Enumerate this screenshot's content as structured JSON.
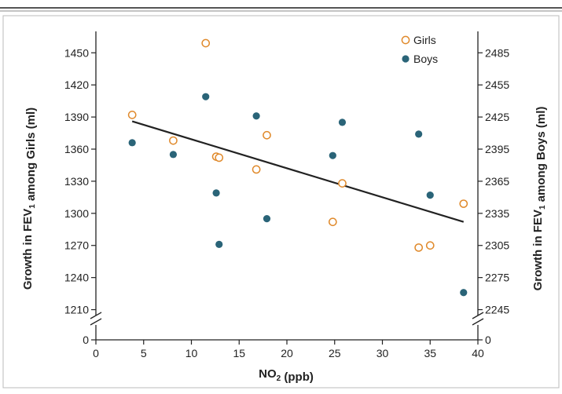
{
  "chart_data": {
    "type": "scatter",
    "xlabel": "NO₂ (ppb)",
    "ylabel_left": "Growth in FEV₁ among Girls (ml)",
    "ylabel_right": "Growth in FEV₁ among Boys (ml)",
    "xlim": [
      0,
      40
    ],
    "ylim_left": [
      1195,
      1470
    ],
    "ylim_right": [
      2230,
      2505
    ],
    "x_ticks": [
      0,
      5,
      10,
      15,
      20,
      25,
      30,
      35,
      40
    ],
    "y_ticks_left": [
      1210,
      1240,
      1270,
      1300,
      1330,
      1360,
      1390,
      1420,
      1450
    ],
    "y_ticks_right": [
      2245,
      2275,
      2305,
      2335,
      2365,
      2395,
      2425,
      2455,
      2485
    ],
    "axis_break_zero_label_left": "0",
    "axis_break_zero_label_right": "0",
    "legend_position": "top-right",
    "series": [
      {
        "name": "Girls",
        "axis": "left",
        "marker": "open-circle",
        "color": "#e08a2c",
        "points": [
          {
            "x": 3.8,
            "y": 1392
          },
          {
            "x": 8.1,
            "y": 1368
          },
          {
            "x": 11.5,
            "y": 1459
          },
          {
            "x": 12.6,
            "y": 1353
          },
          {
            "x": 12.9,
            "y": 1352
          },
          {
            "x": 16.8,
            "y": 1341
          },
          {
            "x": 17.9,
            "y": 1373
          },
          {
            "x": 24.8,
            "y": 1292
          },
          {
            "x": 25.8,
            "y": 1328
          },
          {
            "x": 33.8,
            "y": 1268
          },
          {
            "x": 35.0,
            "y": 1270
          },
          {
            "x": 38.5,
            "y": 1309
          }
        ]
      },
      {
        "name": "Boys",
        "axis": "right",
        "marker": "filled-circle",
        "color": "#2a6478",
        "points": [
          {
            "x": 3.8,
            "y": 2401
          },
          {
            "x": 8.1,
            "y": 2390
          },
          {
            "x": 11.5,
            "y": 2444
          },
          {
            "x": 12.6,
            "y": 2354
          },
          {
            "x": 12.9,
            "y": 2306
          },
          {
            "x": 16.8,
            "y": 2426
          },
          {
            "x": 17.9,
            "y": 2330
          },
          {
            "x": 24.8,
            "y": 2389
          },
          {
            "x": 25.8,
            "y": 2420
          },
          {
            "x": 33.8,
            "y": 2409
          },
          {
            "x": 35.0,
            "y": 2352
          },
          {
            "x": 38.5,
            "y": 2261
          }
        ]
      }
    ],
    "trend_line": {
      "axis": "left",
      "color": "#222222",
      "points": [
        {
          "x": 3.8,
          "y": 1386
        },
        {
          "x": 38.5,
          "y": 1292
        }
      ]
    }
  }
}
